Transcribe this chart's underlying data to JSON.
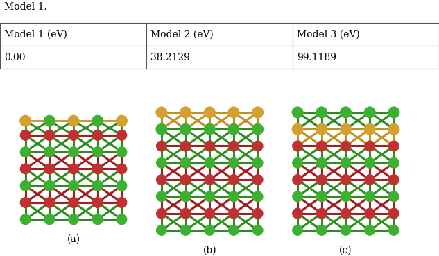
{
  "caption": "Model 1.",
  "table_headers": [
    "Model 1 (eV)",
    "Model 2 (eV)",
    "Model 3 (eV)"
  ],
  "table_values": [
    "0.00",
    "38.2129",
    "99.1189"
  ],
  "labels": [
    "(a)",
    "(b)",
    "(c)"
  ],
  "bg_color": "#ffffff",
  "table_text_color": "#000000",
  "border_color": "#555555",
  "caption_fontsize": 10,
  "table_fontsize": 10,
  "label_fontsize": 10
}
